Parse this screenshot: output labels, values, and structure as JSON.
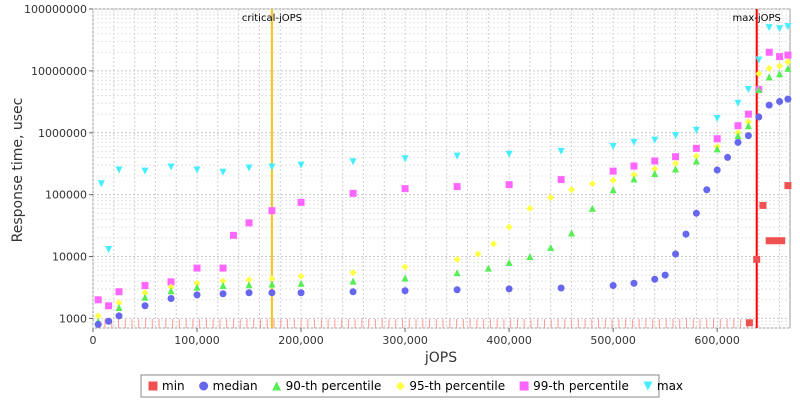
{
  "chart_data": {
    "type": "scatter",
    "title": "",
    "xlabel": "jOPS",
    "ylabel": "Response time, usec",
    "xlim": [
      0,
      670000
    ],
    "ylim": [
      700,
      100000000
    ],
    "yscale": "log",
    "grid": true,
    "legend_position": "bottom",
    "x_ticks": [
      0,
      100000,
      200000,
      300000,
      400000,
      500000,
      600000
    ],
    "x_tick_labels": [
      "0",
      "100,000",
      "200,000",
      "300,000",
      "400,000",
      "500,000",
      "600,000"
    ],
    "y_ticks": [
      1000,
      10000,
      100000,
      1000000,
      10000000,
      100000000
    ],
    "y_tick_labels": [
      "1000",
      "10000",
      "100000",
      "1000000",
      "10000000",
      "100000000"
    ],
    "vertical_lines": [
      {
        "label": "critical-jOPS",
        "x": 172000,
        "color": "#f5c518"
      },
      {
        "label": "max-jOPS",
        "x": 638000,
        "color": "#ff0000"
      }
    ],
    "series": [
      {
        "name": "min",
        "color": "#f05050",
        "marker": "square",
        "x": [
          631000,
          638000,
          644000,
          650000,
          656000,
          662000,
          668000
        ],
        "y": [
          850,
          9000,
          67000,
          18000,
          18000,
          18000,
          140000
        ]
      },
      {
        "name": "median",
        "color": "#6666ee",
        "marker": "circle",
        "x": [
          5000,
          15000,
          25000,
          50000,
          75000,
          100000,
          125000,
          150000,
          172000,
          200000,
          250000,
          300000,
          350000,
          400000,
          450000,
          500000,
          520000,
          540000,
          550000,
          560000,
          570000,
          580000,
          590000,
          600000,
          610000,
          620000,
          630000,
          640000,
          650000,
          660000,
          668000
        ],
        "y": [
          800,
          900,
          1100,
          1600,
          2100,
          2400,
          2500,
          2600,
          2600,
          2600,
          2700,
          2800,
          2900,
          3000,
          3100,
          3400,
          3700,
          4300,
          5000,
          11000,
          23000,
          50000,
          120000,
          250000,
          400000,
          700000,
          900000,
          1800000,
          2800000,
          3200000,
          3500000
        ]
      },
      {
        "name": "90-th percentile",
        "color": "#55ee55",
        "marker": "triangle-up",
        "x": [
          5000,
          25000,
          50000,
          75000,
          100000,
          125000,
          150000,
          172000,
          200000,
          250000,
          300000,
          350000,
          380000,
          400000,
          420000,
          440000,
          460000,
          480000,
          500000,
          520000,
          540000,
          560000,
          580000,
          600000,
          620000,
          630000,
          640000,
          650000,
          660000,
          668000
        ],
        "y": [
          900,
          1500,
          2200,
          2800,
          3200,
          3400,
          3500,
          3600,
          3700,
          4000,
          4500,
          5500,
          6500,
          8000,
          10000,
          14000,
          24000,
          60000,
          120000,
          180000,
          220000,
          260000,
          350000,
          550000,
          900000,
          1300000,
          5000000,
          8000000,
          9000000,
          11000000
        ]
      },
      {
        "name": "95-th percentile",
        "color": "#ffff44",
        "marker": "diamond",
        "x": [
          5000,
          25000,
          50000,
          75000,
          100000,
          125000,
          150000,
          172000,
          200000,
          250000,
          300000,
          350000,
          370000,
          385000,
          400000,
          420000,
          440000,
          460000,
          480000,
          500000,
          520000,
          540000,
          560000,
          580000,
          600000,
          620000,
          630000,
          640000,
          650000,
          660000,
          668000
        ],
        "y": [
          1100,
          1800,
          2600,
          3200,
          3700,
          4000,
          4200,
          4400,
          4800,
          5500,
          6800,
          9000,
          11000,
          16000,
          30000,
          60000,
          90000,
          120000,
          150000,
          170000,
          210000,
          260000,
          320000,
          420000,
          600000,
          1000000,
          1500000,
          9000000,
          11000000,
          12000000,
          14000000
        ]
      },
      {
        "name": "99-th percentile",
        "color": "#ff66ff",
        "marker": "square",
        "x": [
          5000,
          15000,
          25000,
          50000,
          75000,
          100000,
          125000,
          135000,
          150000,
          172000,
          200000,
          250000,
          300000,
          350000,
          400000,
          450000,
          500000,
          520000,
          540000,
          560000,
          580000,
          600000,
          620000,
          630000,
          640000,
          650000,
          660000,
          668000
        ],
        "y": [
          2000,
          1600,
          2700,
          3400,
          3900,
          6500,
          6500,
          22000,
          35000,
          55000,
          75000,
          105000,
          125000,
          135000,
          145000,
          175000,
          240000,
          290000,
          350000,
          410000,
          560000,
          800000,
          1300000,
          2000000,
          5000000,
          20000000,
          17000000,
          18000000
        ]
      },
      {
        "name": "max",
        "color": "#44eeff",
        "marker": "triangle-down",
        "x": [
          8000,
          15000,
          25000,
          50000,
          75000,
          100000,
          125000,
          150000,
          172000,
          200000,
          250000,
          300000,
          350000,
          400000,
          450000,
          500000,
          520000,
          540000,
          560000,
          580000,
          600000,
          620000,
          630000,
          640000,
          650000,
          660000,
          668000
        ],
        "y": [
          150000,
          13000,
          250000,
          240000,
          280000,
          250000,
          230000,
          270000,
          280000,
          300000,
          340000,
          380000,
          420000,
          450000,
          500000,
          600000,
          700000,
          760000,
          900000,
          1100000,
          1700000,
          3000000,
          5000000,
          15000000,
          50000000,
          48000000,
          52000000
        ]
      }
    ]
  }
}
